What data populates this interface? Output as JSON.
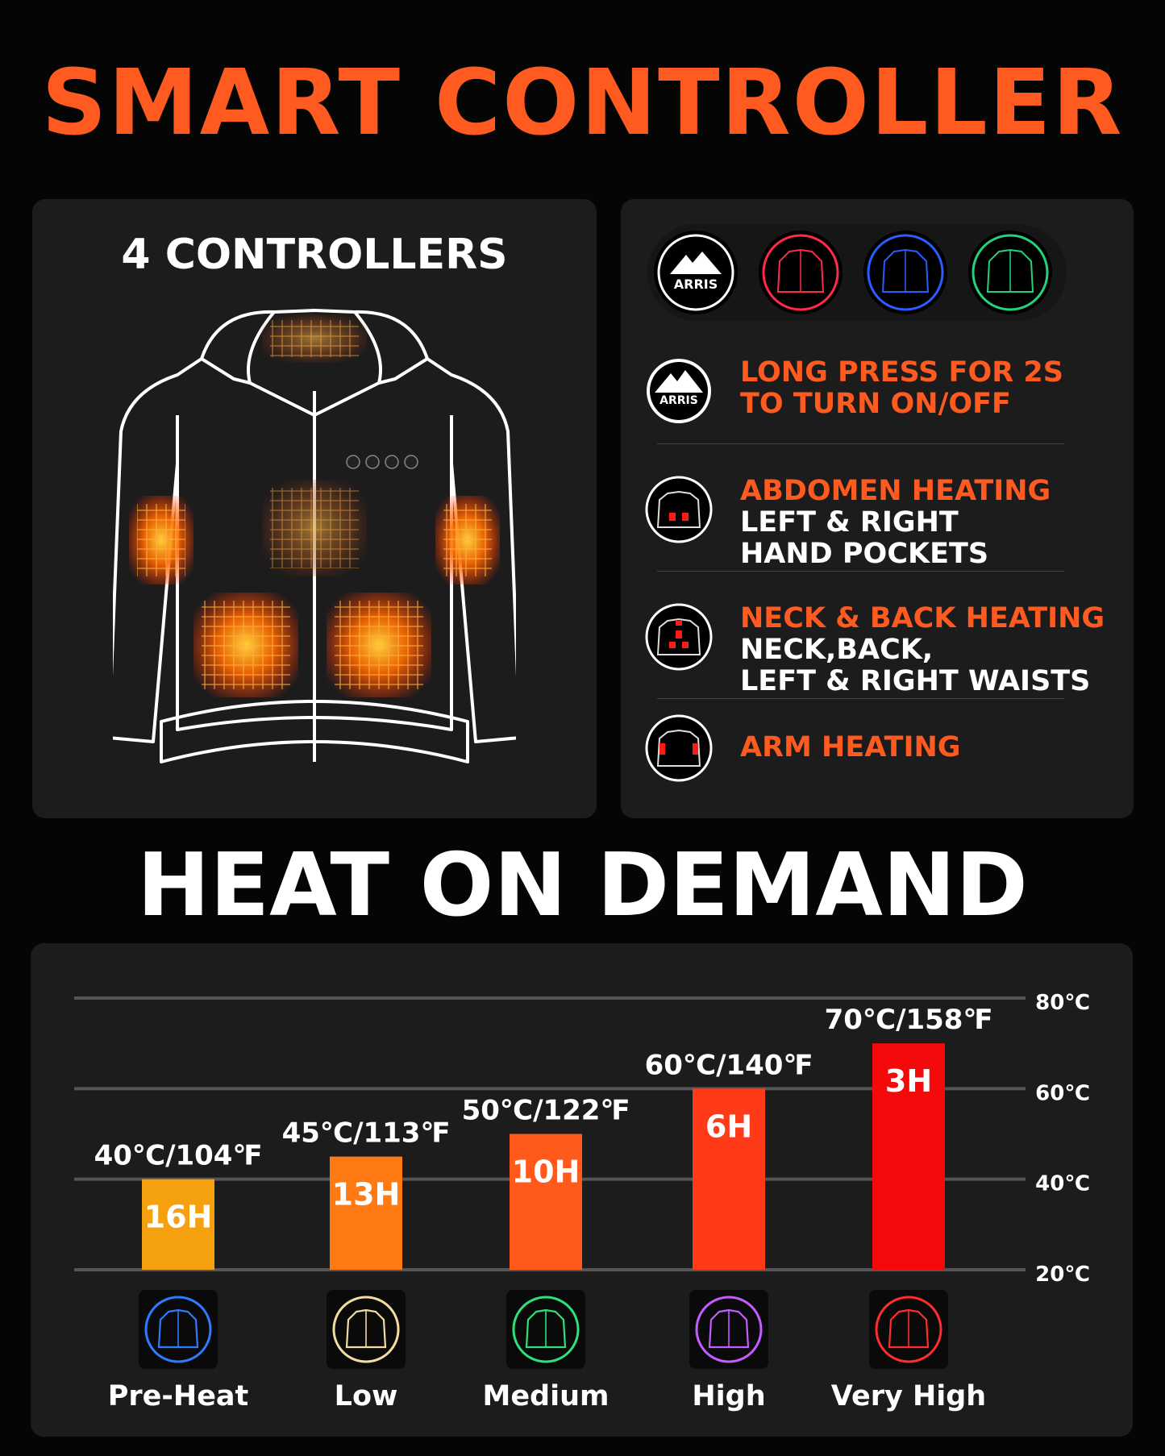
{
  "header": {
    "title": "SMART CONTROLLER",
    "title_color": "#ff5a1f"
  },
  "controllers_panel": {
    "title": "4 CONTROLLERS",
    "heat_color": "#ff6a00",
    "strip_icons": [
      "arris-logo-icon",
      "red-jacket-icon",
      "blue-jacket-icon",
      "green-jacket-icon"
    ],
    "strip_icon_colors": [
      "#ffffff",
      "#ff2a4a",
      "#2a5cff",
      "#25d27a"
    ]
  },
  "instructions": [
    {
      "icon": "arris-logo-icon",
      "logo_text": "ARRIS",
      "orange": "LONG PRESS FOR 2S",
      "orange2": "TO TURN ON/OFF",
      "white": []
    },
    {
      "icon": "jacket-pocket-icon",
      "orange": "ABDOMEN HEATING",
      "white": [
        "LEFT & RIGHT",
        "HAND POCKETS"
      ]
    },
    {
      "icon": "jacket-back-icon",
      "orange": "NECK & BACK HEATING",
      "white": [
        "NECK,BACK,",
        "LEFT & RIGHT WAISTS"
      ]
    },
    {
      "icon": "jacket-arm-icon",
      "orange": "ARM HEATING",
      "white": []
    }
  ],
  "logo_text": "ARRIS",
  "section2": {
    "title": "HEAT ON DEMAND"
  },
  "chart_data": {
    "type": "bar",
    "categories": [
      "Pre-Heat",
      "Low",
      "Medium",
      "High",
      "Very High"
    ],
    "values": [
      40,
      45,
      50,
      60,
      70
    ],
    "bar_labels": [
      "40℃/104℉",
      "45℃/113℉",
      "50℃/122℉",
      "60℃/140℉",
      "70℃/158℉"
    ],
    "hours": [
      "16H",
      "13H",
      "10H",
      "6H",
      "3H"
    ],
    "colors": [
      "#f5a00f",
      "#ff7a12",
      "#ff5a1c",
      "#ff3a18",
      "#f40a0a"
    ],
    "icon_colors": [
      "#2f7bff",
      "#f2dca0",
      "#2fe07a",
      "#c45cff",
      "#ff2d2d"
    ],
    "y_ticks": [
      "80℃",
      "60℃",
      "40℃",
      "20℃"
    ],
    "y_tick_values": [
      80,
      60,
      40,
      20
    ],
    "ylim": [
      20,
      80
    ],
    "grid": true
  }
}
